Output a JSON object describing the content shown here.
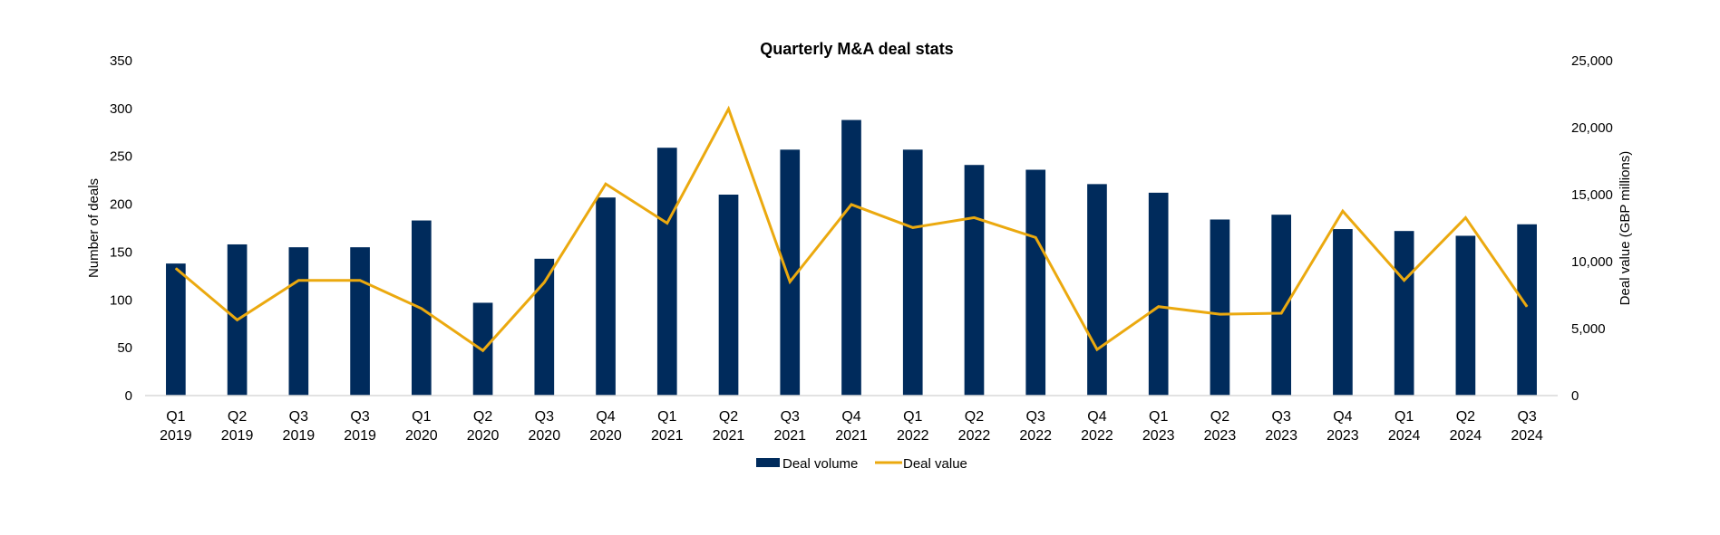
{
  "chart_data": {
    "type": "bar+line",
    "title": "Quarterly M&A deal stats",
    "xlabel": "",
    "ylabel_left": "Number of deals",
    "ylabel_right": "Deal value (GBP millions)",
    "ylim_left": [
      0,
      350
    ],
    "ylim_right": [
      0,
      25000
    ],
    "yticks_left": [
      "0",
      "50",
      "100",
      "150",
      "200",
      "250",
      "300",
      "350"
    ],
    "yticks_right": [
      "0",
      "5,000",
      "10,000",
      "15,000",
      "20,000",
      "25,000"
    ],
    "grid": false,
    "legend_position": "bottom",
    "categories": [
      [
        "Q1",
        "2019"
      ],
      [
        "Q2",
        "2019"
      ],
      [
        "Q3",
        "2019"
      ],
      [
        "Q3",
        "2019"
      ],
      [
        "Q1",
        "2020"
      ],
      [
        "Q2",
        "2020"
      ],
      [
        "Q3",
        "2020"
      ],
      [
        "Q4",
        "2020"
      ],
      [
        "Q1",
        "2021"
      ],
      [
        "Q2",
        "2021"
      ],
      [
        "Q3",
        "2021"
      ],
      [
        "Q4",
        "2021"
      ],
      [
        "Q1",
        "2022"
      ],
      [
        "Q2",
        "2022"
      ],
      [
        "Q3",
        "2022"
      ],
      [
        "Q4",
        "2022"
      ],
      [
        "Q1",
        "2023"
      ],
      [
        "Q2",
        "2023"
      ],
      [
        "Q3",
        "2023"
      ],
      [
        "Q4",
        "2023"
      ],
      [
        "Q1",
        "2024"
      ],
      [
        "Q2",
        "2024"
      ],
      [
        "Q3",
        "2024"
      ]
    ],
    "series": [
      {
        "name": "Deal volume",
        "type": "bar",
        "axis": "left",
        "color": "#002b5c",
        "values": [
          138,
          158,
          155,
          155,
          183,
          97,
          143,
          207,
          259,
          210,
          257,
          288,
          257,
          241,
          236,
          221,
          212,
          184,
          189,
          174,
          172,
          167,
          179
        ]
      },
      {
        "name": "Deal value",
        "type": "line",
        "axis": "right",
        "color": "#eba90f",
        "values": [
          9500,
          5650,
          8600,
          8600,
          6500,
          3360,
          8450,
          15800,
          12870,
          21400,
          8500,
          14260,
          12540,
          13280,
          11800,
          3440,
          6640,
          6070,
          6150,
          13770,
          8600,
          13280,
          6640
        ]
      }
    ]
  }
}
